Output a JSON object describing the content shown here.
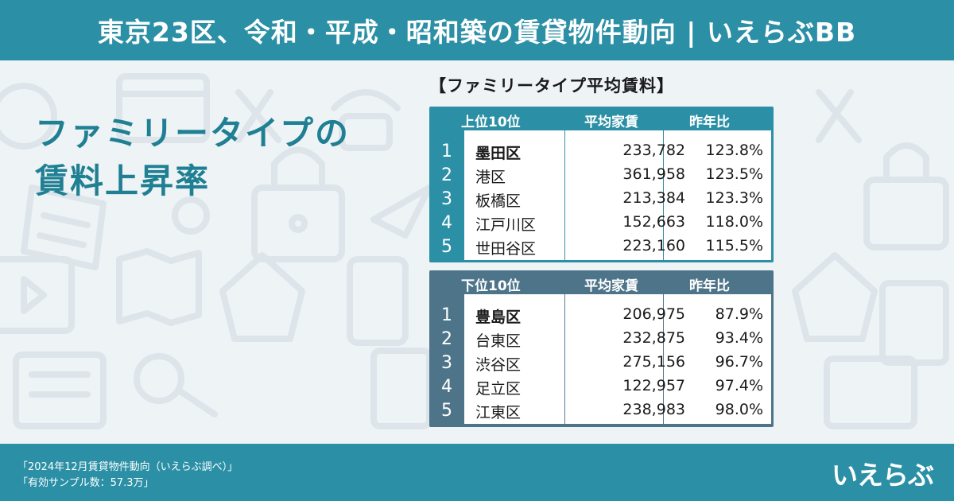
{
  "header": {
    "title": "東京23区、令和・平成・昭和築の賃貸物件動向 | いえらぶBB"
  },
  "headline": {
    "line1": "ファミリータイプの",
    "line2": "賃料上昇率"
  },
  "table_title": "【ファミリータイプ平均賃料】",
  "top_table": {
    "headers": [
      "上位10位",
      "平均家賃",
      "昨年比"
    ],
    "rows": [
      {
        "rank": "1",
        "ward": "墨田区",
        "rent": "233,782",
        "ratio": "123.8%"
      },
      {
        "rank": "2",
        "ward": "港区",
        "rent": "361,958",
        "ratio": "123.5%"
      },
      {
        "rank": "3",
        "ward": "板橋区",
        "rent": "213,384",
        "ratio": "123.3%"
      },
      {
        "rank": "4",
        "ward": "江戸川区",
        "rent": "152,663",
        "ratio": "118.0%"
      },
      {
        "rank": "5",
        "ward": "世田谷区",
        "rent": "223,160",
        "ratio": "115.5%"
      }
    ]
  },
  "bottom_table": {
    "headers": [
      "下位10位",
      "平均家賃",
      "昨年比"
    ],
    "rows": [
      {
        "rank": "1",
        "ward": "豊島区",
        "rent": "206,975",
        "ratio": "87.9%"
      },
      {
        "rank": "2",
        "ward": "台東区",
        "rent": "232,875",
        "ratio": "93.4%"
      },
      {
        "rank": "3",
        "ward": "渋谷区",
        "rent": "275,156",
        "ratio": "96.7%"
      },
      {
        "rank": "4",
        "ward": "足立区",
        "rent": "122,957",
        "ratio": "97.4%"
      },
      {
        "rank": "5",
        "ward": "江東区",
        "rent": "238,983",
        "ratio": "98.0%"
      }
    ]
  },
  "footer": {
    "note1": "「2024年12月賃貸物件動向（いえらぶ調べ）」",
    "note2": "「有効サンプル数：57.3万」",
    "logo": "いえらぶ"
  },
  "colors": {
    "header": "#2b8fa5",
    "headline": "#1f7f93",
    "bottom_table": "#4d7489"
  },
  "background_icons": [
    "globe-icon",
    "browser-icon",
    "tools-icon",
    "phone-icon",
    "lock-icon",
    "document-icon",
    "paper-plane-icon",
    "map-icon",
    "video-icon",
    "tablet-icon",
    "house-icon",
    "key-icon",
    "checklist-icon",
    "newspaper-icon",
    "gear-icon"
  ]
}
